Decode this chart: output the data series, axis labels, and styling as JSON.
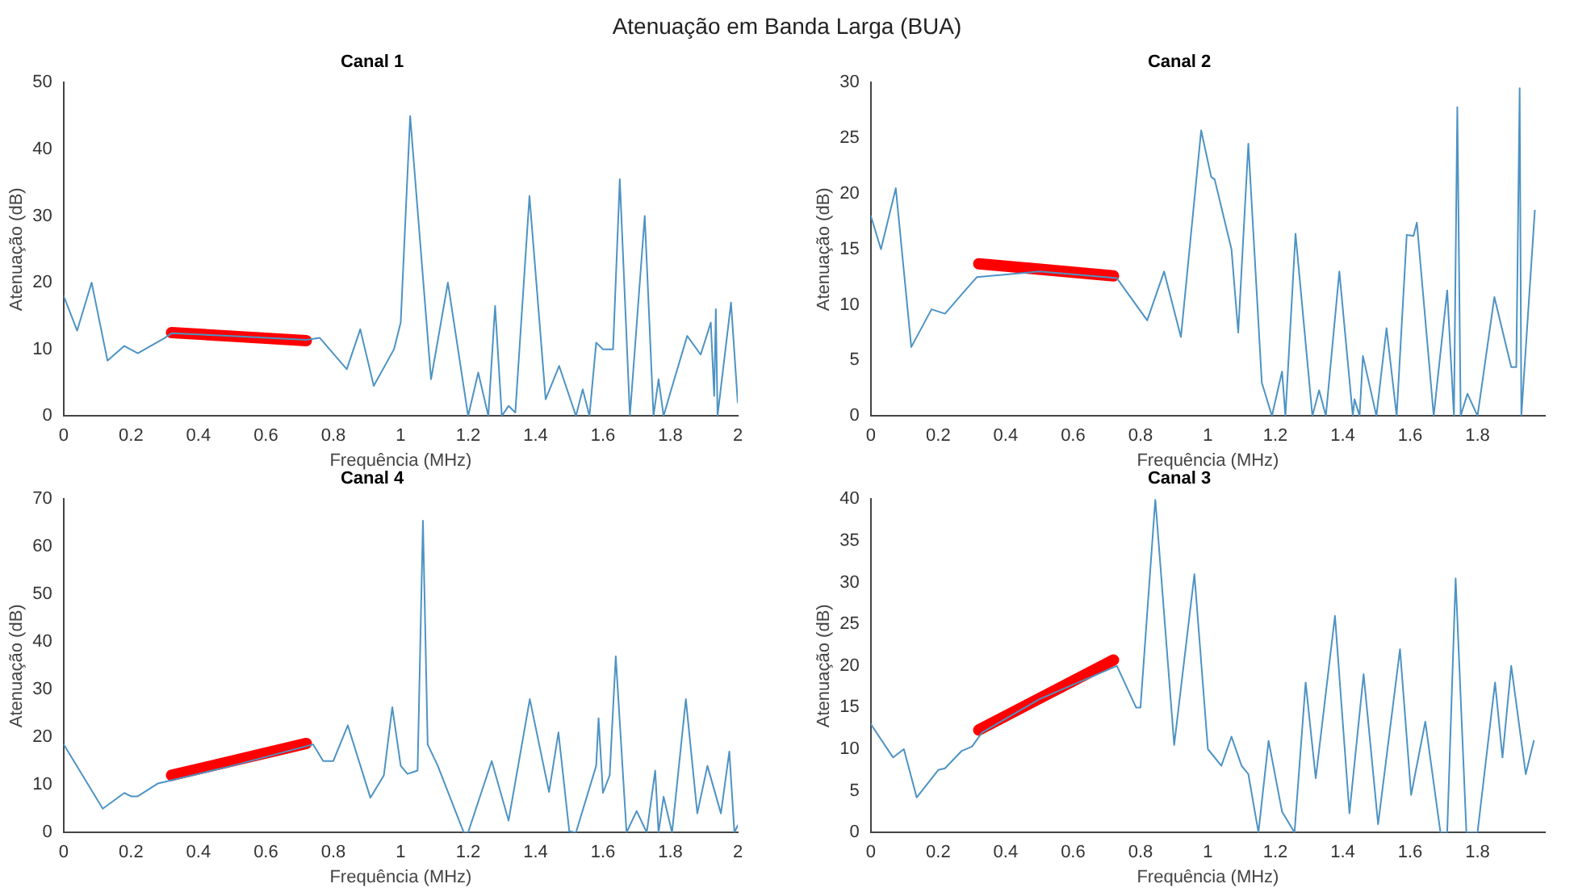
{
  "chart_data": [
    {
      "type": "line",
      "title": "Canal 1",
      "xlabel": "Frequência (MHz)",
      "ylabel": "Atenuação (dB)",
      "annotations": [
        "Atenuação em Banda Larga (BUA)"
      ],
      "xlim": [
        0,
        2
      ],
      "xticks": [
        0,
        0.2,
        0.4,
        0.6,
        0.8,
        1,
        1.2,
        1.4,
        1.6,
        1.8,
        2
      ],
      "ylim": [
        0,
        50
      ],
      "yticks": [
        0,
        10,
        20,
        30,
        40,
        50
      ],
      "grid": false,
      "legend": false,
      "marker": "none",
      "line_style": "solid",
      "series": [
        {
          "color": "#4d93c4",
          "x": [
            0,
            0.04,
            0.083,
            0.13,
            0.18,
            0.22,
            0.3,
            0.32,
            0.5,
            0.72,
            0.76,
            0.84,
            0.88,
            0.92,
            0.98,
            1.0,
            1.028,
            1.09,
            1.14,
            1.2,
            1.23,
            1.26,
            1.28,
            1.3,
            1.32,
            1.34,
            1.382,
            1.43,
            1.47,
            1.52,
            1.54,
            1.56,
            1.58,
            1.6,
            1.63,
            1.65,
            1.68,
            1.724,
            1.75,
            1.765,
            1.78,
            1.8,
            1.85,
            1.89,
            1.92,
            1.93,
            1.935,
            1.94,
            1.98,
            2.0
          ],
          "values": [
            18,
            12.8,
            20,
            8.3,
            10.5,
            9.4,
            11.7,
            12.4,
            12,
            11.4,
            11.7,
            7,
            13,
            4.5,
            10,
            14,
            45,
            5.5,
            20,
            0,
            6.5,
            0,
            16.5,
            0,
            1.5,
            0.5,
            33,
            2.5,
            7.5,
            0,
            4,
            0,
            11,
            10,
            10,
            35.5,
            0,
            30,
            0,
            5.5,
            0,
            3.5,
            12,
            9.2,
            14,
            3,
            16,
            0,
            17,
            2
          ]
        },
        {
          "color": "#ff0000",
          "x": [
            0.32,
            0.72
          ],
          "values": [
            12.5,
            11.3
          ]
        }
      ]
    },
    {
      "type": "line",
      "title": "Canal 2",
      "xlabel": "Frequência (MHz)",
      "ylabel": "Atenuação (dB)",
      "xlim": [
        0,
        2
      ],
      "xticks": [
        0,
        0.2,
        0.4,
        0.6,
        0.8,
        1,
        1.2,
        1.4,
        1.6,
        1.8
      ],
      "ylim": [
        0,
        30
      ],
      "yticks": [
        0,
        5,
        10,
        15,
        20,
        25,
        30
      ],
      "grid": false,
      "legend": false,
      "marker": "none",
      "line_style": "solid",
      "series": [
        {
          "color": "#4d93c4",
          "x": [
            0,
            0.03,
            0.074,
            0.12,
            0.18,
            0.22,
            0.28,
            0.315,
            0.5,
            0.73,
            0.82,
            0.87,
            0.92,
            0.98,
            1.01,
            1.02,
            1.07,
            1.09,
            1.12,
            1.16,
            1.19,
            1.22,
            1.23,
            1.26,
            1.31,
            1.33,
            1.35,
            1.39,
            1.43,
            1.435,
            1.45,
            1.46,
            1.5,
            1.53,
            1.56,
            1.59,
            1.61,
            1.62,
            1.67,
            1.71,
            1.73,
            1.74,
            1.75,
            1.77,
            1.8,
            1.85,
            1.9,
            1.915,
            1.925,
            1.93,
            1.97
          ],
          "values": [
            18,
            15,
            20.5,
            6.2,
            9.6,
            9.2,
            11.3,
            12.5,
            13,
            12.4,
            8.6,
            13,
            7.1,
            25.7,
            21.5,
            21.3,
            15,
            7.5,
            24.5,
            3,
            0,
            4,
            0,
            16.4,
            0,
            2.3,
            0,
            13,
            0,
            1.5,
            0,
            5.4,
            0,
            7.9,
            0,
            16.3,
            16.2,
            17.4,
            0,
            11.3,
            0,
            27.8,
            0,
            2,
            0,
            10.7,
            4.4,
            4.4,
            29.5,
            0,
            18.5
          ]
        },
        {
          "color": "#ff0000",
          "x": [
            0.32,
            0.72
          ],
          "values": [
            13.7,
            12.6
          ]
        }
      ]
    },
    {
      "type": "line",
      "title": "Canal 4",
      "xlabel": "Frequência (MHz)",
      "ylabel": "Atenuação (dB)",
      "xlim": [
        0,
        2
      ],
      "xticks": [
        0,
        0.2,
        0.4,
        0.6,
        0.8,
        1,
        1.2,
        1.4,
        1.6,
        1.8,
        2
      ],
      "ylim": [
        0,
        70
      ],
      "yticks": [
        0,
        10,
        20,
        30,
        40,
        50,
        60,
        70
      ],
      "grid": false,
      "legend": false,
      "marker": "none",
      "line_style": "solid",
      "series": [
        {
          "color": "#4d93c4",
          "x": [
            0,
            0.116,
            0.18,
            0.2,
            0.22,
            0.28,
            0.31,
            0.5,
            0.74,
            0.77,
            0.8,
            0.843,
            0.91,
            0.95,
            0.975,
            1.0,
            1.02,
            1.05,
            1.066,
            1.08,
            1.11,
            1.187,
            1.2,
            1.27,
            1.32,
            1.383,
            1.44,
            1.468,
            1.5,
            1.52,
            1.58,
            1.587,
            1.6,
            1.62,
            1.638,
            1.67,
            1.7,
            1.73,
            1.755,
            1.765,
            1.78,
            1.805,
            1.846,
            1.88,
            1.91,
            1.95,
            1.975,
            1.99,
            2.0
          ],
          "values": [
            18.5,
            5,
            8.3,
            7.6,
            7.6,
            10.3,
            10.8,
            14,
            18.5,
            15,
            15,
            22.5,
            7.3,
            12,
            26.3,
            14,
            12.3,
            13,
            65.5,
            18.5,
            14,
            0,
            0,
            15,
            2.5,
            28,
            8.5,
            21,
            0.3,
            0,
            14,
            24,
            8.3,
            12,
            37,
            0,
            4.5,
            0,
            13,
            0,
            7.5,
            0,
            28,
            4,
            14,
            4,
            17,
            0,
            1.5
          ]
        },
        {
          "color": "#ff0000",
          "x": [
            0.32,
            0.72
          ],
          "values": [
            12,
            18.7
          ]
        }
      ]
    },
    {
      "type": "line",
      "title": "Canal 3",
      "xlabel": "Frequência (MHz)",
      "ylabel": "Atenuação (dB)",
      "xlim": [
        0,
        2
      ],
      "xticks": [
        0,
        0.2,
        0.4,
        0.6,
        0.8,
        1,
        1.2,
        1.4,
        1.6,
        1.8
      ],
      "ylim": [
        0,
        40
      ],
      "yticks": [
        0,
        5,
        10,
        15,
        20,
        25,
        30,
        35,
        40
      ],
      "grid": false,
      "legend": false,
      "marker": "none",
      "line_style": "solid",
      "series": [
        {
          "color": "#4d93c4",
          "x": [
            0,
            0.066,
            0.098,
            0.136,
            0.2,
            0.22,
            0.27,
            0.3,
            0.33,
            0.5,
            0.73,
            0.787,
            0.8,
            0.844,
            0.9,
            0.96,
            1.0,
            1.04,
            1.07,
            1.1,
            1.12,
            1.15,
            1.18,
            1.22,
            1.257,
            1.29,
            1.32,
            1.377,
            1.42,
            1.462,
            1.505,
            1.57,
            1.603,
            1.645,
            1.69,
            1.71,
            1.735,
            1.767,
            1.8,
            1.852,
            1.874,
            1.9,
            1.943,
            1.967
          ],
          "values": [
            13,
            9,
            10,
            4.2,
            7.5,
            7.7,
            9.8,
            10.3,
            12,
            16,
            20,
            15,
            15,
            40,
            10.5,
            31,
            10,
            8,
            11.5,
            8,
            7,
            0,
            11,
            2.5,
            0,
            18,
            6.5,
            26,
            2.3,
            19,
            1,
            22,
            4.5,
            13.3,
            0,
            0,
            30.5,
            0,
            0,
            18,
            9,
            20,
            7,
            11
          ]
        },
        {
          "color": "#ff0000",
          "x": [
            0.32,
            0.72
          ],
          "values": [
            12.3,
            20.7
          ]
        }
      ]
    }
  ]
}
